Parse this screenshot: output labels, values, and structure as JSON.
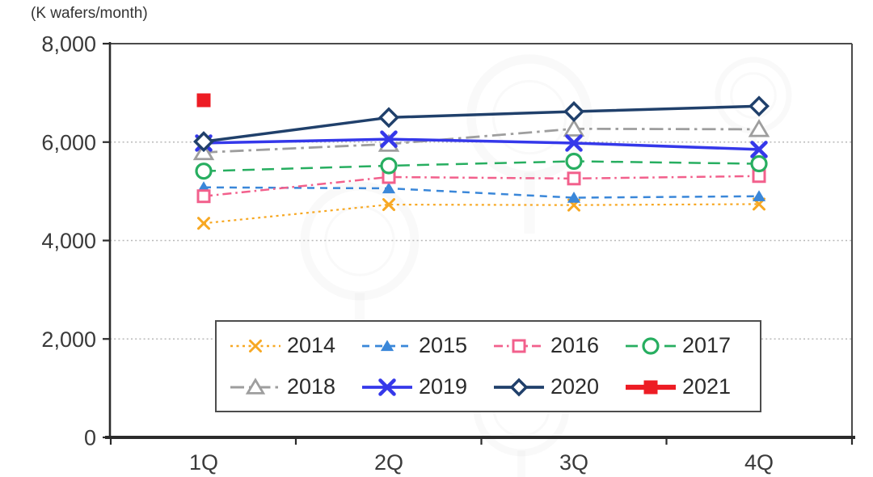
{
  "axis_unit_label": "(K wafers/month)",
  "watermark": "faint circular seal watermark (illegible)",
  "chart_data": {
    "type": "line",
    "title": "",
    "ylabel": "(K wafers/month)",
    "xlabel": "",
    "categories": [
      "1Q",
      "2Q",
      "3Q",
      "4Q"
    ],
    "ylim": [
      0,
      8000
    ],
    "y_ticks": [
      {
        "label": "8,000",
        "value": 8000
      },
      {
        "label": "6,000",
        "value": 6000
      },
      {
        "label": "4,000",
        "value": 4000
      },
      {
        "label": "2,000",
        "value": 2000
      },
      {
        "label": "0",
        "value": 0
      }
    ],
    "grid": "horizontal dotted at 2000/4000/6000",
    "legend_position": "inside bottom, boxed, 2 rows x 4 cols",
    "series": [
      {
        "name": "2014",
        "color": "#F7A823",
        "line": "dotted",
        "marker": "x",
        "values": [
          4350,
          4730,
          4720,
          4740
        ]
      },
      {
        "name": "2015",
        "color": "#3A87D9",
        "line": "dashed",
        "marker": "triangle-filled",
        "values": [
          5080,
          5060,
          4870,
          4900
        ]
      },
      {
        "name": "2016",
        "color": "#F2608C",
        "line": "dash-dot",
        "marker": "square-open",
        "values": [
          4900,
          5290,
          5260,
          5310
        ]
      },
      {
        "name": "2017",
        "color": "#27AE60",
        "line": "dashed",
        "marker": "circle-open",
        "values": [
          5410,
          5520,
          5610,
          5560
        ]
      },
      {
        "name": "2018",
        "color": "#9E9E9E",
        "line": "dash-dot",
        "marker": "triangle-open",
        "values": [
          5790,
          5960,
          6270,
          6260
        ]
      },
      {
        "name": "2019",
        "color": "#3538EA",
        "line": "solid",
        "marker": "x",
        "values": [
          5980,
          6060,
          5980,
          5850
        ]
      },
      {
        "name": "2020",
        "color": "#20406B",
        "line": "solid",
        "marker": "diamond-open",
        "values": [
          6010,
          6500,
          6620,
          6730
        ]
      },
      {
        "name": "2021",
        "color": "#ED1C24",
        "line": "solid",
        "marker": "square-filled",
        "values": [
          6850,
          null,
          null,
          null
        ]
      }
    ]
  }
}
